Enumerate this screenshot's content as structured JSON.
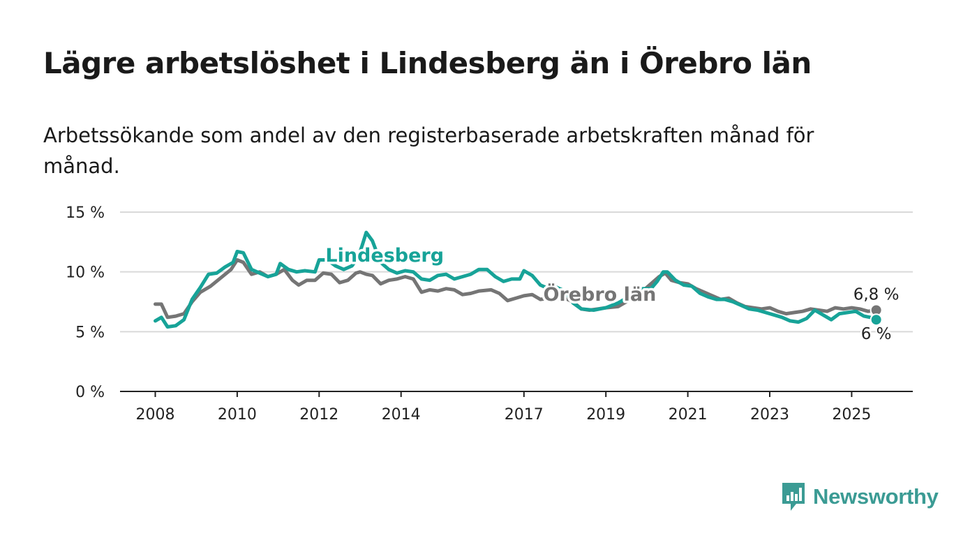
{
  "title": "Lägre arbetslöshet i Lindesberg än i Örebro län",
  "subtitle": "Arbetssökande som andel av den registerbaserade arbetskraften månad för månad.",
  "brand": {
    "name": "Newsworthy",
    "color": "#3b9b94",
    "icon": "newsworthy-chart-bubble-icon"
  },
  "chart_data": {
    "type": "line",
    "ylim": [
      0,
      15
    ],
    "xlim": [
      2007.8,
      2026.5
    ],
    "y_ticks": [
      {
        "value": 0,
        "label": "0 %"
      },
      {
        "value": 5,
        "label": "5 %"
      },
      {
        "value": 10,
        "label": "10 %"
      },
      {
        "value": 15,
        "label": "15 %"
      }
    ],
    "x_ticks": [
      {
        "value": 2008,
        "label": "2008"
      },
      {
        "value": 2010,
        "label": "2010"
      },
      {
        "value": 2012,
        "label": "2012"
      },
      {
        "value": 2014,
        "label": "2014"
      },
      {
        "value": 2017,
        "label": "2017"
      },
      {
        "value": 2019,
        "label": "2019"
      },
      {
        "value": 2021,
        "label": "2021"
      },
      {
        "value": 2023,
        "label": "2023"
      },
      {
        "value": 2025,
        "label": "2025"
      }
    ],
    "grid": true,
    "series": [
      {
        "name": "Örebro län",
        "color": "#757575",
        "end_label": "6,8 %",
        "points": [
          [
            2008.0,
            7.3
          ],
          [
            2008.15,
            7.3
          ],
          [
            2008.3,
            6.2
          ],
          [
            2008.5,
            6.3
          ],
          [
            2008.7,
            6.5
          ],
          [
            2008.9,
            7.5
          ],
          [
            2009.1,
            8.3
          ],
          [
            2009.35,
            8.8
          ],
          [
            2009.6,
            9.5
          ],
          [
            2009.85,
            10.2
          ],
          [
            2010.0,
            11.0
          ],
          [
            2010.15,
            10.8
          ],
          [
            2010.35,
            9.8
          ],
          [
            2010.55,
            10.0
          ],
          [
            2010.75,
            9.6
          ],
          [
            2010.95,
            9.8
          ],
          [
            2011.15,
            10.2
          ],
          [
            2011.35,
            9.3
          ],
          [
            2011.5,
            8.9
          ],
          [
            2011.7,
            9.3
          ],
          [
            2011.9,
            9.3
          ],
          [
            2012.1,
            9.9
          ],
          [
            2012.3,
            9.8
          ],
          [
            2012.5,
            9.1
          ],
          [
            2012.7,
            9.3
          ],
          [
            2012.9,
            9.9
          ],
          [
            2013.0,
            10.0
          ],
          [
            2013.15,
            9.8
          ],
          [
            2013.3,
            9.7
          ],
          [
            2013.5,
            9.0
          ],
          [
            2013.7,
            9.3
          ],
          [
            2013.9,
            9.4
          ],
          [
            2014.1,
            9.6
          ],
          [
            2014.3,
            9.4
          ],
          [
            2014.5,
            8.3
          ],
          [
            2014.7,
            8.5
          ],
          [
            2014.9,
            8.4
          ],
          [
            2015.1,
            8.6
          ],
          [
            2015.3,
            8.5
          ],
          [
            2015.5,
            8.1
          ],
          [
            2015.7,
            8.2
          ],
          [
            2015.9,
            8.4
          ],
          [
            2016.2,
            8.5
          ],
          [
            2016.4,
            8.2
          ],
          [
            2016.6,
            7.6
          ],
          [
            2016.8,
            7.8
          ],
          [
            2017.0,
            8.0
          ],
          [
            2017.2,
            8.1
          ],
          [
            2017.4,
            7.7
          ],
          [
            2017.6,
            7.8
          ],
          [
            2017.8,
            7.7
          ],
          [
            2018.0,
            7.8
          ],
          [
            2018.2,
            7.5
          ],
          [
            2018.4,
            6.9
          ],
          [
            2018.6,
            6.8
          ],
          [
            2018.8,
            6.9
          ],
          [
            2019.0,
            7.0
          ],
          [
            2019.3,
            7.1
          ],
          [
            2019.6,
            7.7
          ],
          [
            2019.9,
            8.4
          ],
          [
            2020.1,
            9.0
          ],
          [
            2020.3,
            9.6
          ],
          [
            2020.45,
            9.9
          ],
          [
            2020.6,
            9.3
          ],
          [
            2020.8,
            9.1
          ],
          [
            2021.0,
            9.0
          ],
          [
            2021.2,
            8.6
          ],
          [
            2021.4,
            8.3
          ],
          [
            2021.6,
            8.0
          ],
          [
            2021.8,
            7.7
          ],
          [
            2022.0,
            7.8
          ],
          [
            2022.2,
            7.4
          ],
          [
            2022.4,
            7.1
          ],
          [
            2022.6,
            7.0
          ],
          [
            2022.8,
            6.9
          ],
          [
            2023.0,
            7.0
          ],
          [
            2023.2,
            6.7
          ],
          [
            2023.4,
            6.5
          ],
          [
            2023.6,
            6.6
          ],
          [
            2023.8,
            6.7
          ],
          [
            2024.0,
            6.9
          ],
          [
            2024.2,
            6.8
          ],
          [
            2024.4,
            6.7
          ],
          [
            2024.6,
            7.0
          ],
          [
            2024.8,
            6.9
          ],
          [
            2025.0,
            7.0
          ],
          [
            2025.2,
            6.9
          ],
          [
            2025.4,
            6.7
          ],
          [
            2025.6,
            6.8
          ]
        ]
      },
      {
        "name": "Lindesberg",
        "color": "#17a398",
        "end_label": "6 %",
        "points": [
          [
            2008.0,
            5.9
          ],
          [
            2008.15,
            6.2
          ],
          [
            2008.3,
            5.4
          ],
          [
            2008.5,
            5.5
          ],
          [
            2008.7,
            6.0
          ],
          [
            2008.9,
            7.7
          ],
          [
            2009.1,
            8.7
          ],
          [
            2009.3,
            9.8
          ],
          [
            2009.5,
            9.9
          ],
          [
            2009.7,
            10.4
          ],
          [
            2009.9,
            10.8
          ],
          [
            2010.0,
            11.7
          ],
          [
            2010.15,
            11.6
          ],
          [
            2010.35,
            10.2
          ],
          [
            2010.55,
            9.9
          ],
          [
            2010.75,
            9.6
          ],
          [
            2010.95,
            9.8
          ],
          [
            2011.05,
            10.7
          ],
          [
            2011.25,
            10.2
          ],
          [
            2011.45,
            10.0
          ],
          [
            2011.65,
            10.1
          ],
          [
            2011.9,
            10.0
          ],
          [
            2012.0,
            11.0
          ],
          [
            2012.2,
            11.0
          ],
          [
            2012.4,
            10.5
          ],
          [
            2012.6,
            10.2
          ],
          [
            2012.8,
            10.5
          ],
          [
            2012.95,
            11.2
          ],
          [
            2013.05,
            12.2
          ],
          [
            2013.15,
            13.3
          ],
          [
            2013.3,
            12.6
          ],
          [
            2013.5,
            10.8
          ],
          [
            2013.7,
            10.2
          ],
          [
            2013.9,
            9.9
          ],
          [
            2014.1,
            10.1
          ],
          [
            2014.3,
            10.0
          ],
          [
            2014.5,
            9.4
          ],
          [
            2014.7,
            9.3
          ],
          [
            2014.9,
            9.7
          ],
          [
            2015.1,
            9.8
          ],
          [
            2015.3,
            9.4
          ],
          [
            2015.5,
            9.6
          ],
          [
            2015.7,
            9.8
          ],
          [
            2015.9,
            10.2
          ],
          [
            2016.1,
            10.2
          ],
          [
            2016.3,
            9.6
          ],
          [
            2016.5,
            9.2
          ],
          [
            2016.7,
            9.4
          ],
          [
            2016.9,
            9.4
          ],
          [
            2017.0,
            10.1
          ],
          [
            2017.2,
            9.7
          ],
          [
            2017.4,
            8.9
          ],
          [
            2017.6,
            8.6
          ],
          [
            2017.8,
            8.7
          ],
          [
            2018.0,
            8.4
          ],
          [
            2018.2,
            7.4
          ],
          [
            2018.4,
            6.9
          ],
          [
            2018.7,
            6.8
          ],
          [
            2019.0,
            7.0
          ],
          [
            2019.3,
            7.4
          ],
          [
            2019.6,
            8.0
          ],
          [
            2019.9,
            8.6
          ],
          [
            2020.1,
            8.6
          ],
          [
            2020.25,
            9.2
          ],
          [
            2020.4,
            10.0
          ],
          [
            2020.5,
            10.0
          ],
          [
            2020.7,
            9.3
          ],
          [
            2020.9,
            8.9
          ],
          [
            2021.1,
            8.8
          ],
          [
            2021.3,
            8.2
          ],
          [
            2021.5,
            7.9
          ],
          [
            2021.7,
            7.7
          ],
          [
            2021.9,
            7.7
          ],
          [
            2022.1,
            7.5
          ],
          [
            2022.3,
            7.2
          ],
          [
            2022.5,
            6.9
          ],
          [
            2022.7,
            6.8
          ],
          [
            2022.9,
            6.6
          ],
          [
            2023.1,
            6.4
          ],
          [
            2023.3,
            6.2
          ],
          [
            2023.5,
            5.9
          ],
          [
            2023.7,
            5.8
          ],
          [
            2023.9,
            6.1
          ],
          [
            2024.1,
            6.8
          ],
          [
            2024.3,
            6.4
          ],
          [
            2024.5,
            6.0
          ],
          [
            2024.7,
            6.5
          ],
          [
            2024.9,
            6.6
          ],
          [
            2025.1,
            6.7
          ],
          [
            2025.3,
            6.3
          ],
          [
            2025.45,
            6.2
          ],
          [
            2025.6,
            6.0
          ]
        ]
      }
    ],
    "annotations": [
      {
        "text": "Lindesberg",
        "series": "Lindesberg",
        "x": 2013.6,
        "y": 10.85,
        "color": "#17a398"
      },
      {
        "text": "Örebro län",
        "series": "Örebro län",
        "x": 2018.85,
        "y": 7.6,
        "color": "#757575"
      }
    ]
  }
}
